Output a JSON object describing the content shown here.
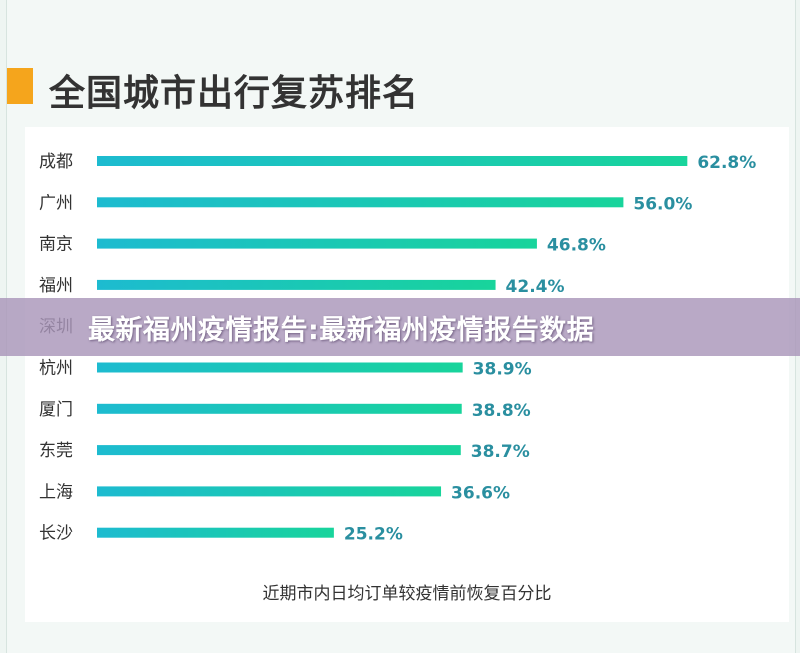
{
  "page": {
    "title": "全国城市出行复苏排名",
    "watermark": "最新福州疫情报告:最新福州疫情报告数据"
  },
  "colors": {
    "accent": "#f5a51c",
    "bar_start": "#1dbbd0",
    "bar_end": "#18d49b",
    "value_text": "#2a8fa0",
    "label_text": "#333333"
  },
  "chart_data": {
    "type": "bar",
    "orientation": "horizontal",
    "categories": [
      "成都",
      "广州",
      "南京",
      "福州",
      "深圳",
      "杭州",
      "厦门",
      "东莞",
      "上海",
      "长沙"
    ],
    "values": [
      62.8,
      56.0,
      46.8,
      42.4,
      null,
      38.9,
      38.8,
      38.7,
      36.6,
      25.2
    ],
    "value_labels": [
      "62.8%",
      "56.0%",
      "46.8%",
      "42.4%",
      "",
      "38.9%",
      "38.8%",
      "38.7%",
      "36.6%",
      "25.2%"
    ],
    "xlabel": "近期市内日均订单较疫情前恢复百分比",
    "xlim": [
      0,
      65
    ],
    "grid": false,
    "legend": "none"
  }
}
